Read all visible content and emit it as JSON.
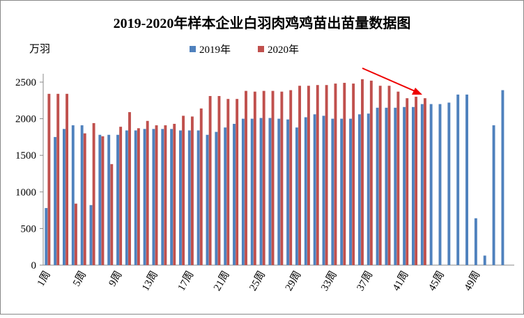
{
  "chart_data": {
    "type": "bar",
    "title": "2019-2020年样本企业白羽肉鸡鸡苗出苗量数据图",
    "y_label": "万羽",
    "categories": [
      "1周",
      null,
      null,
      null,
      "5周",
      null,
      null,
      null,
      "9周",
      null,
      null,
      null,
      "13周",
      null,
      null,
      null,
      "17周",
      null,
      null,
      null,
      "21周",
      null,
      null,
      null,
      "25周",
      null,
      null,
      null,
      "29周",
      null,
      null,
      null,
      "33周",
      null,
      null,
      null,
      "37周",
      null,
      null,
      null,
      "41周",
      null,
      null,
      null,
      "45周",
      null,
      null,
      null,
      "49周",
      null,
      null,
      null
    ],
    "series": [
      {
        "name": "2019年",
        "color": "#4f81bd",
        "values": [
          780,
          1750,
          1860,
          1910,
          1910,
          820,
          1780,
          1780,
          1780,
          1840,
          1840,
          1860,
          1860,
          1860,
          1860,
          1840,
          1840,
          1840,
          1780,
          1820,
          1880,
          1930,
          2000,
          2000,
          2010,
          2010,
          2000,
          1990,
          1880,
          2020,
          2060,
          2040,
          2000,
          2000,
          2000,
          2060,
          2070,
          2150,
          2150,
          2150,
          2160,
          2160,
          2200,
          2200,
          2200,
          2220,
          2330,
          2330,
          640,
          130,
          1910,
          2390
        ]
      },
      {
        "name": "2020年",
        "color": "#c0504d",
        "values": [
          2340,
          2340,
          2340,
          840,
          1800,
          1940,
          1760,
          1380,
          1890,
          2090,
          1870,
          1970,
          1910,
          1910,
          1930,
          2040,
          2030,
          2140,
          2310,
          2310,
          2270,
          2270,
          2380,
          2370,
          2380,
          2380,
          2370,
          2390,
          2450,
          2450,
          2460,
          2460,
          2480,
          2490,
          2480,
          2540,
          2520,
          2450,
          2450,
          2370,
          2280,
          2300,
          2280,
          null,
          null,
          null,
          null,
          null,
          null,
          null,
          null,
          null
        ]
      }
    ],
    "ylim": [
      0,
      2500
    ],
    "yticks": [
      0,
      500,
      1000,
      1500,
      2000,
      2500
    ],
    "grid": false
  }
}
